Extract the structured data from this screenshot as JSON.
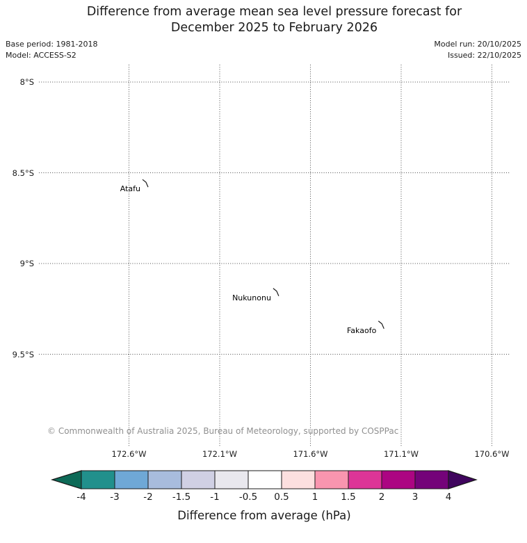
{
  "title": {
    "lines": [
      "Difference from average mean sea level pressure forecast for",
      "December 2025 to February 2026"
    ]
  },
  "metadata": {
    "base_period": "Base period: 1981-2018",
    "model": "Model: ACCESS-S2",
    "model_run": "Model run: 20/10/2025",
    "issued": "Issued: 22/10/2025"
  },
  "attribution": "© Commonwealth of Australia 2025, Bureau of Meteorology, supported by COSPPac",
  "chart_data": {
    "type": "map",
    "grid": true,
    "lat_ticks": [
      "8°S",
      "8.5°S",
      "9°S",
      "9.5°S"
    ],
    "lat_tick_values": [
      -8,
      -8.5,
      -9,
      -9.5
    ],
    "lon_ticks": [
      "172.6°W",
      "172.1°W",
      "171.6°W",
      "171.1°W",
      "170.6°W"
    ],
    "lon_tick_values": [
      -172.6,
      -172.1,
      -171.6,
      -171.1,
      -170.6
    ],
    "islands": [
      {
        "name": "Atafu",
        "lat": -8.56,
        "lon": -172.51
      },
      {
        "name": "Nukunonu",
        "lat": -9.16,
        "lon": -171.79
      },
      {
        "name": "Fakaofo",
        "lat": -9.34,
        "lon": -171.21
      }
    ],
    "colorbar": {
      "label": "Difference from average (hPa)",
      "tick_labels": [
        "-4",
        "-3",
        "-2",
        "-1.5",
        "-1",
        "-0.5",
        "0.5",
        "1",
        "1.5",
        "2",
        "3",
        "4"
      ],
      "segment_colors": [
        "#21908c",
        "#6fa8d6",
        "#a8bcdd",
        "#d0d0e4",
        "#e9e8ee",
        "#ffffff",
        "#fcdfdf",
        "#f995af",
        "#dd3597",
        "#ac0582",
        "#740379"
      ],
      "under_color": "#0d6a57",
      "over_color": "#40055e",
      "outline_color": "#1a1a1a"
    }
  }
}
